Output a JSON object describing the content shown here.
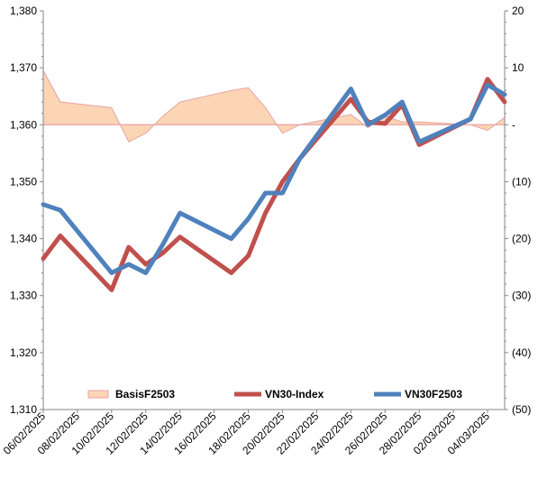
{
  "chart_data": {
    "type": "line",
    "title": "",
    "categories": [
      "06/02/2025",
      "07/02/2025",
      "10/02/2025",
      "11/02/2025",
      "12/02/2025",
      "13/02/2025",
      "14/02/2025",
      "17/02/2025",
      "18/02/2025",
      "19/02/2025",
      "20/02/2025",
      "21/02/2025",
      "24/02/2025",
      "25/02/2025",
      "26/02/2025",
      "27/02/2025",
      "28/02/2025",
      "03/03/2025",
      "04/03/2025",
      "05/03/2025"
    ],
    "x_tick_labels": [
      "06/02/2025",
      "08/02/2025",
      "10/02/2025",
      "12/02/2025",
      "14/02/2025",
      "16/02/2025",
      "18/02/2025",
      "20/02/2025",
      "22/02/2025",
      "24/02/2025",
      "26/02/2025",
      "28/02/2025",
      "02/03/2025",
      "04/03/2025"
    ],
    "x_range": [
      "06/02/2025",
      "05/03/2025"
    ],
    "y_left": {
      "range": [
        1310,
        1380
      ],
      "ticks": [
        1310,
        1320,
        1330,
        1340,
        1350,
        1360,
        1370,
        1380
      ],
      "tick_labels": [
        "1,310",
        "1,320",
        "1,330",
        "1,340",
        "1,350",
        "1,360",
        "1,370",
        "1,380"
      ]
    },
    "y_right": {
      "range": [
        -50,
        20
      ],
      "ticks": [
        -50,
        -40,
        -30,
        -20,
        -10,
        0,
        10,
        20
      ],
      "tick_labels": [
        "(50)",
        "(40)",
        "(30)",
        "(20)",
        "(10)",
        "-",
        "10",
        "20"
      ]
    },
    "grid": false,
    "legend": {
      "position": "bottom"
    },
    "series": [
      {
        "name": "BasisF2503",
        "type": "area",
        "axis": "right",
        "color": "#fcd5b5",
        "edge_color": "#e6a3a3",
        "points": [
          [
            "06/02/2025",
            9.5
          ],
          [
            "07/02/2025",
            4.0
          ],
          [
            "10/02/2025",
            3.0
          ],
          [
            "11/02/2025",
            -3.0
          ],
          [
            "12/02/2025",
            -1.5
          ],
          [
            "13/02/2025",
            1.5
          ],
          [
            "14/02/2025",
            4.0
          ],
          [
            "17/02/2025",
            6.0
          ],
          [
            "18/02/2025",
            6.5
          ],
          [
            "19/02/2025",
            3.0
          ],
          [
            "20/02/2025",
            -1.5
          ],
          [
            "21/02/2025",
            0.0
          ],
          [
            "24/02/2025",
            1.8
          ],
          [
            "25/02/2025",
            -0.5
          ],
          [
            "26/02/2025",
            1.5
          ],
          [
            "27/02/2025",
            0.5
          ],
          [
            "28/02/2025",
            0.5
          ],
          [
            "03/03/2025",
            0.0
          ],
          [
            "04/03/2025",
            -1.0
          ],
          [
            "05/03/2025",
            1.3
          ]
        ]
      },
      {
        "name": "VN30-Index",
        "type": "line",
        "axis": "left",
        "color": "#c0504d",
        "points": [
          [
            "06/02/2025",
            1336.5
          ],
          [
            "07/02/2025",
            1340.5
          ],
          [
            "10/02/2025",
            1331.0
          ],
          [
            "11/02/2025",
            1338.5
          ],
          [
            "12/02/2025",
            1335.5
          ],
          [
            "13/02/2025",
            1337.5
          ],
          [
            "14/02/2025",
            1340.3
          ],
          [
            "17/02/2025",
            1334.0
          ],
          [
            "18/02/2025",
            1337.0
          ],
          [
            "19/02/2025",
            1344.5
          ],
          [
            "20/02/2025",
            1350.0
          ],
          [
            "21/02/2025",
            1354.0
          ],
          [
            "24/02/2025",
            1364.5
          ],
          [
            "25/02/2025",
            1360.5
          ],
          [
            "26/02/2025",
            1360.2
          ],
          [
            "27/02/2025",
            1363.5
          ],
          [
            "28/02/2025",
            1356.5
          ],
          [
            "03/03/2025",
            1361.0
          ],
          [
            "04/03/2025",
            1368.0
          ],
          [
            "05/03/2025",
            1364.0
          ]
        ]
      },
      {
        "name": "VN30F2503",
        "type": "line",
        "axis": "left",
        "color": "#4f81bd",
        "points": [
          [
            "06/02/2025",
            1346.0
          ],
          [
            "07/02/2025",
            1345.0
          ],
          [
            "10/02/2025",
            1334.0
          ],
          [
            "11/02/2025",
            1335.5
          ],
          [
            "12/02/2025",
            1334.0
          ],
          [
            "13/02/2025",
            1339.0
          ],
          [
            "14/02/2025",
            1344.5
          ],
          [
            "17/02/2025",
            1340.0
          ],
          [
            "18/02/2025",
            1343.5
          ],
          [
            "19/02/2025",
            1348.0
          ],
          [
            "20/02/2025",
            1348.0
          ],
          [
            "21/02/2025",
            1354.0
          ],
          [
            "24/02/2025",
            1366.3
          ],
          [
            "25/02/2025",
            1360.0
          ],
          [
            "26/02/2025",
            1361.7
          ],
          [
            "27/02/2025",
            1364.0
          ],
          [
            "28/02/2025",
            1357.0
          ],
          [
            "03/03/2025",
            1361.0
          ],
          [
            "04/03/2025",
            1367.0
          ],
          [
            "05/03/2025",
            1365.3
          ]
        ]
      }
    ]
  }
}
